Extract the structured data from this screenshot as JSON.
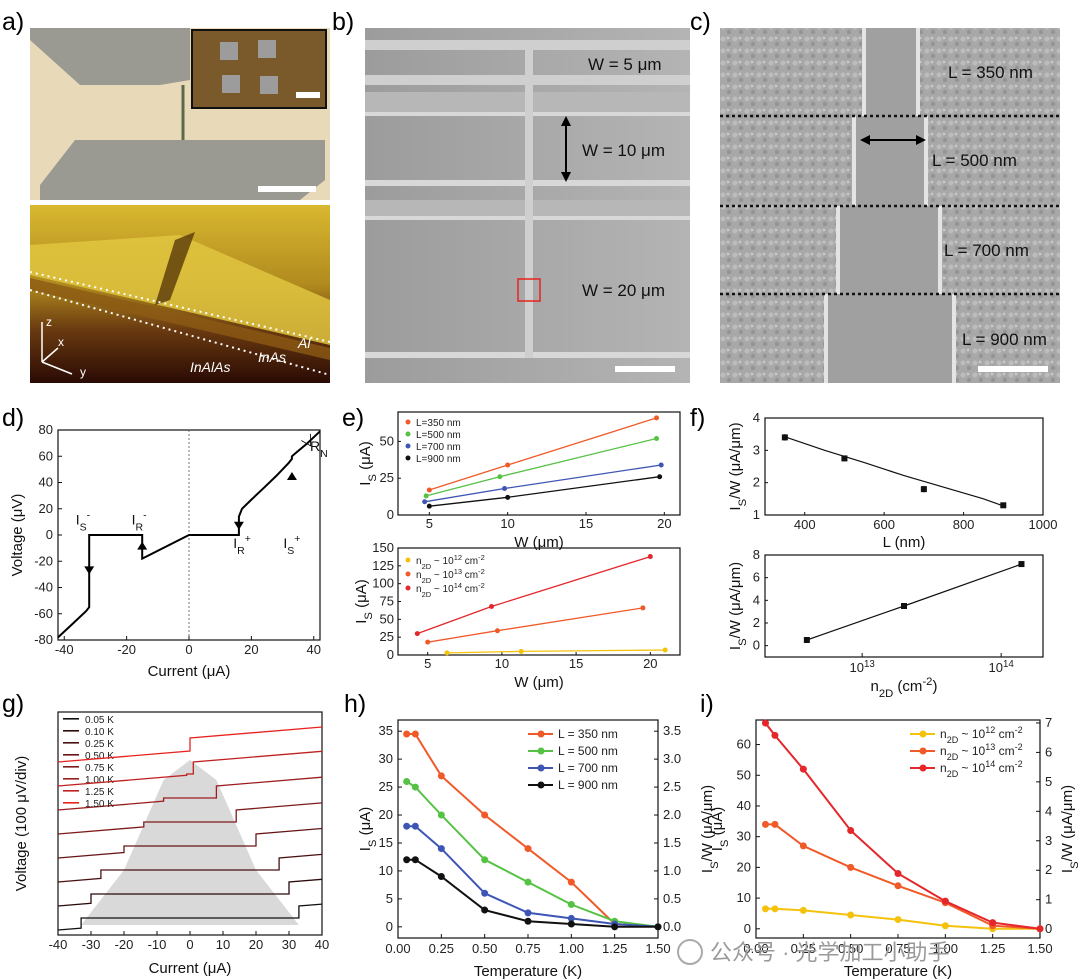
{
  "panel_labels": [
    "a)",
    "b)",
    "c)",
    "d)",
    "e)",
    "f)",
    "g)",
    "h)",
    "i)"
  ],
  "panel_a": {
    "afm_labels": [
      "Al",
      "InAs",
      "InAlAs"
    ],
    "axes": [
      "z",
      "x",
      "y"
    ]
  },
  "panel_b": {
    "labels": [
      "W = 5 μm",
      "W = 10 μm",
      "W = 20 μm"
    ]
  },
  "panel_c": {
    "labels": [
      "L = 350 nm",
      "L = 500 nm",
      "L = 700 nm",
      "L = 900 nm"
    ]
  },
  "watermark": "公众号 · 光学加工小助手",
  "colors": {
    "L350": "#f05a28",
    "L500": "#55c244",
    "L700": "#3d56b5",
    "L900": "#111111",
    "n12": "#f4c20d",
    "n13": "#f05a28",
    "n14": "#e5262b"
  },
  "chart_data": [
    {
      "id": "d",
      "type": "line",
      "title": "",
      "xlabel": "Current (μA)",
      "ylabel": "Voltage (μV)",
      "xlim": [
        -42,
        42
      ],
      "ylim": [
        -80,
        80
      ],
      "xticks": [
        -40,
        -20,
        0,
        20,
        40
      ],
      "yticks": [
        -80,
        -60,
        -40,
        -20,
        0,
        20,
        40,
        60,
        80
      ],
      "annotations": [
        "I",
        "S",
        "-",
        "I",
        "R",
        "-",
        "I",
        "R",
        "+",
        "I",
        "S",
        "+",
        "R",
        "N"
      ],
      "series": [
        {
          "name": "V-I",
          "x": [
            -42,
            -37,
            -33,
            -32,
            -32,
            -31,
            -27,
            -22,
            -18,
            -16,
            -15,
            -15,
            0,
            16,
            16,
            17,
            20,
            24,
            28,
            32,
            33,
            33,
            34,
            38,
            42
          ],
          "y": [
            -78,
            -67,
            -58,
            -55,
            0,
            0,
            0,
            0,
            0,
            0,
            0,
            -18,
            0,
            0,
            14,
            20,
            27,
            36,
            45,
            55,
            58,
            60,
            62,
            70,
            79
          ]
        }
      ]
    },
    {
      "id": "e_top",
      "type": "line",
      "xlabel": "W (μm)",
      "ylabel": "I_S (μA)",
      "xlim": [
        3,
        21
      ],
      "ylim": [
        0,
        70
      ],
      "xticks": [
        5,
        10,
        15,
        20
      ],
      "yticks": [
        0,
        25,
        50
      ],
      "series": [
        {
          "name": "L=350 nm",
          "x": [
            5,
            10,
            19.5
          ],
          "values": [
            17,
            34,
            66
          ]
        },
        {
          "name": "L=500 nm",
          "x": [
            4.8,
            9.5,
            19.5
          ],
          "values": [
            13,
            26,
            52
          ]
        },
        {
          "name": "L=700 nm",
          "x": [
            4.7,
            9.8,
            19.8
          ],
          "values": [
            9,
            18,
            34
          ]
        },
        {
          "name": "L=900 nm",
          "x": [
            5,
            10,
            19.7
          ],
          "values": [
            6,
            12,
            26
          ]
        }
      ]
    },
    {
      "id": "e_bottom",
      "type": "line",
      "xlabel": "W (μm)",
      "ylabel": "I_S (μA)",
      "xlim": [
        3,
        22
      ],
      "ylim": [
        0,
        150
      ],
      "xticks": [
        5,
        10,
        15,
        20
      ],
      "yticks": [
        0,
        25,
        50,
        75,
        100,
        125,
        150
      ],
      "legend": [
        "n2D ~ 10^12 cm^-2",
        "n2D ~ 10^13 cm^-2",
        "n2D ~ 10^14 cm^-2"
      ],
      "series": [
        {
          "name": "n12",
          "x": [
            6.3,
            11.3,
            21
          ],
          "values": [
            3,
            5,
            7
          ]
        },
        {
          "name": "n13",
          "x": [
            5,
            9.7,
            19.5
          ],
          "values": [
            18,
            34,
            66
          ]
        },
        {
          "name": "n14",
          "x": [
            4.3,
            9.3,
            20
          ],
          "values": [
            30,
            68,
            138
          ]
        }
      ]
    },
    {
      "id": "f_top",
      "type": "scatter",
      "xlabel": "L (nm)",
      "ylabel": "I_S/W (μA/μm)",
      "xlim": [
        300,
        1000
      ],
      "ylim": [
        1,
        4
      ],
      "xticks": [
        400,
        600,
        800,
        1000
      ],
      "yticks": [
        1,
        2,
        3,
        4
      ],
      "series": [
        {
          "name": "data",
          "x": [
            350,
            500,
            700,
            900
          ],
          "values": [
            3.4,
            2.75,
            1.8,
            1.3
          ],
          "err": [
            0.1,
            0.07,
            0.1,
            0.05
          ]
        },
        {
          "name": "fit",
          "x": [
            350,
            450,
            550,
            650,
            750,
            850,
            900
          ],
          "values": [
            3.42,
            3.0,
            2.62,
            2.22,
            1.86,
            1.5,
            1.28
          ]
        }
      ]
    },
    {
      "id": "f_bottom",
      "type": "scatter",
      "xlabel": "n2D (cm^-2)",
      "ylabel": "I_S/W (μA/μm)",
      "xscale": "log",
      "xlim": [
        2000000000000.0,
        200000000000000.0
      ],
      "ylim": [
        -1,
        8
      ],
      "xticks": [
        "10^13",
        "10^14"
      ],
      "yticks": [
        0,
        2,
        4,
        6,
        8
      ],
      "series": [
        {
          "name": "data",
          "x": [
            4000000000000.0,
            20000000000000.0,
            140000000000000.0
          ],
          "values": [
            0.5,
            3.5,
            7.2
          ]
        }
      ]
    },
    {
      "id": "g",
      "type": "line",
      "xlabel": "Current (μA)",
      "ylabel": "Voltage (100 μV/div)",
      "xlim": [
        -40,
        40
      ],
      "xticks": [
        -40,
        -30,
        -20,
        -10,
        0,
        10,
        20,
        30,
        40
      ],
      "legend": [
        "0.05 K",
        "0.10 K",
        "0.25 K",
        "0.50 K",
        "0.75 K",
        "1.00 K",
        "1.25 K",
        "1.50 K"
      ],
      "critical_currents": [
        33,
        30,
        27,
        20,
        14,
        8,
        1,
        0
      ],
      "retrapping_currents": [
        15,
        14,
        12,
        10,
        8,
        5,
        1,
        0
      ],
      "series_colors": [
        "#111111",
        "#2a0a0a",
        "#4a1010",
        "#661616",
        "#7d1a1a",
        "#9a1e1e",
        "#c02020",
        "#e8221f"
      ]
    },
    {
      "id": "h",
      "type": "line",
      "xlabel": "Temperature (K)",
      "ylabel": "I_S (μA)",
      "y2label": "I_S/W (μA/μm)",
      "xlim": [
        0,
        1.5
      ],
      "ylim": [
        -2,
        37
      ],
      "y2lim": [
        -0.2,
        3.7
      ],
      "xticks": [
        0.0,
        0.25,
        0.5,
        0.75,
        1.0,
        1.25,
        1.5
      ],
      "yticks": [
        0,
        5,
        10,
        15,
        20,
        25,
        30,
        35
      ],
      "y2ticks": [
        0.0,
        0.5,
        1.0,
        1.5,
        2.0,
        2.5,
        3.0,
        3.5
      ],
      "categories": [
        0.05,
        0.1,
        0.25,
        0.5,
        0.75,
        1.0,
        1.25,
        1.5
      ],
      "series": [
        {
          "name": "L = 350 nm",
          "values": [
            34.5,
            34.5,
            27,
            20,
            14,
            8,
            0.5,
            0
          ]
        },
        {
          "name": "L = 500 nm",
          "values": [
            26,
            25,
            20,
            12,
            8,
            4,
            1,
            0
          ]
        },
        {
          "name": "L = 700 nm",
          "values": [
            18,
            18,
            14,
            6,
            2.5,
            1.5,
            0.5,
            0
          ]
        },
        {
          "name": "L = 900 nm",
          "values": [
            12,
            12,
            9,
            3,
            1,
            0.5,
            0,
            0
          ]
        }
      ]
    },
    {
      "id": "i",
      "type": "line",
      "xlabel": "Temperature (K)",
      "ylabel": "I_S (μA)",
      "y2label": "I_S/W (μA/μm)",
      "xlim": [
        0,
        1.5
      ],
      "ylim": [
        -3,
        68
      ],
      "y2lim": [
        -0.3,
        7.1
      ],
      "xticks": [
        0.0,
        0.25,
        0.5,
        0.75,
        1.0,
        1.25,
        1.5
      ],
      "yticks": [
        0,
        10,
        20,
        30,
        40,
        50,
        60
      ],
      "y2ticks": [
        0,
        1,
        2,
        3,
        4,
        5,
        6,
        7
      ],
      "legend": [
        "n2D ~ 10^12 cm^-2",
        "n2D ~ 10^13 cm^-2",
        "n2D ~ 10^14 cm^-2"
      ],
      "categories": [
        0.05,
        0.1,
        0.25,
        0.5,
        0.75,
        1.0,
        1.25,
        1.5
      ],
      "series": [
        {
          "name": "n12",
          "values": [
            6.5,
            6.5,
            6,
            4.5,
            3,
            1,
            0,
            0
          ]
        },
        {
          "name": "n13",
          "values": [
            34,
            34,
            27,
            20,
            14,
            8.5,
            1,
            0
          ]
        },
        {
          "name": "n14",
          "values": [
            67,
            63,
            52,
            32,
            18,
            9,
            2,
            0
          ]
        }
      ]
    }
  ]
}
